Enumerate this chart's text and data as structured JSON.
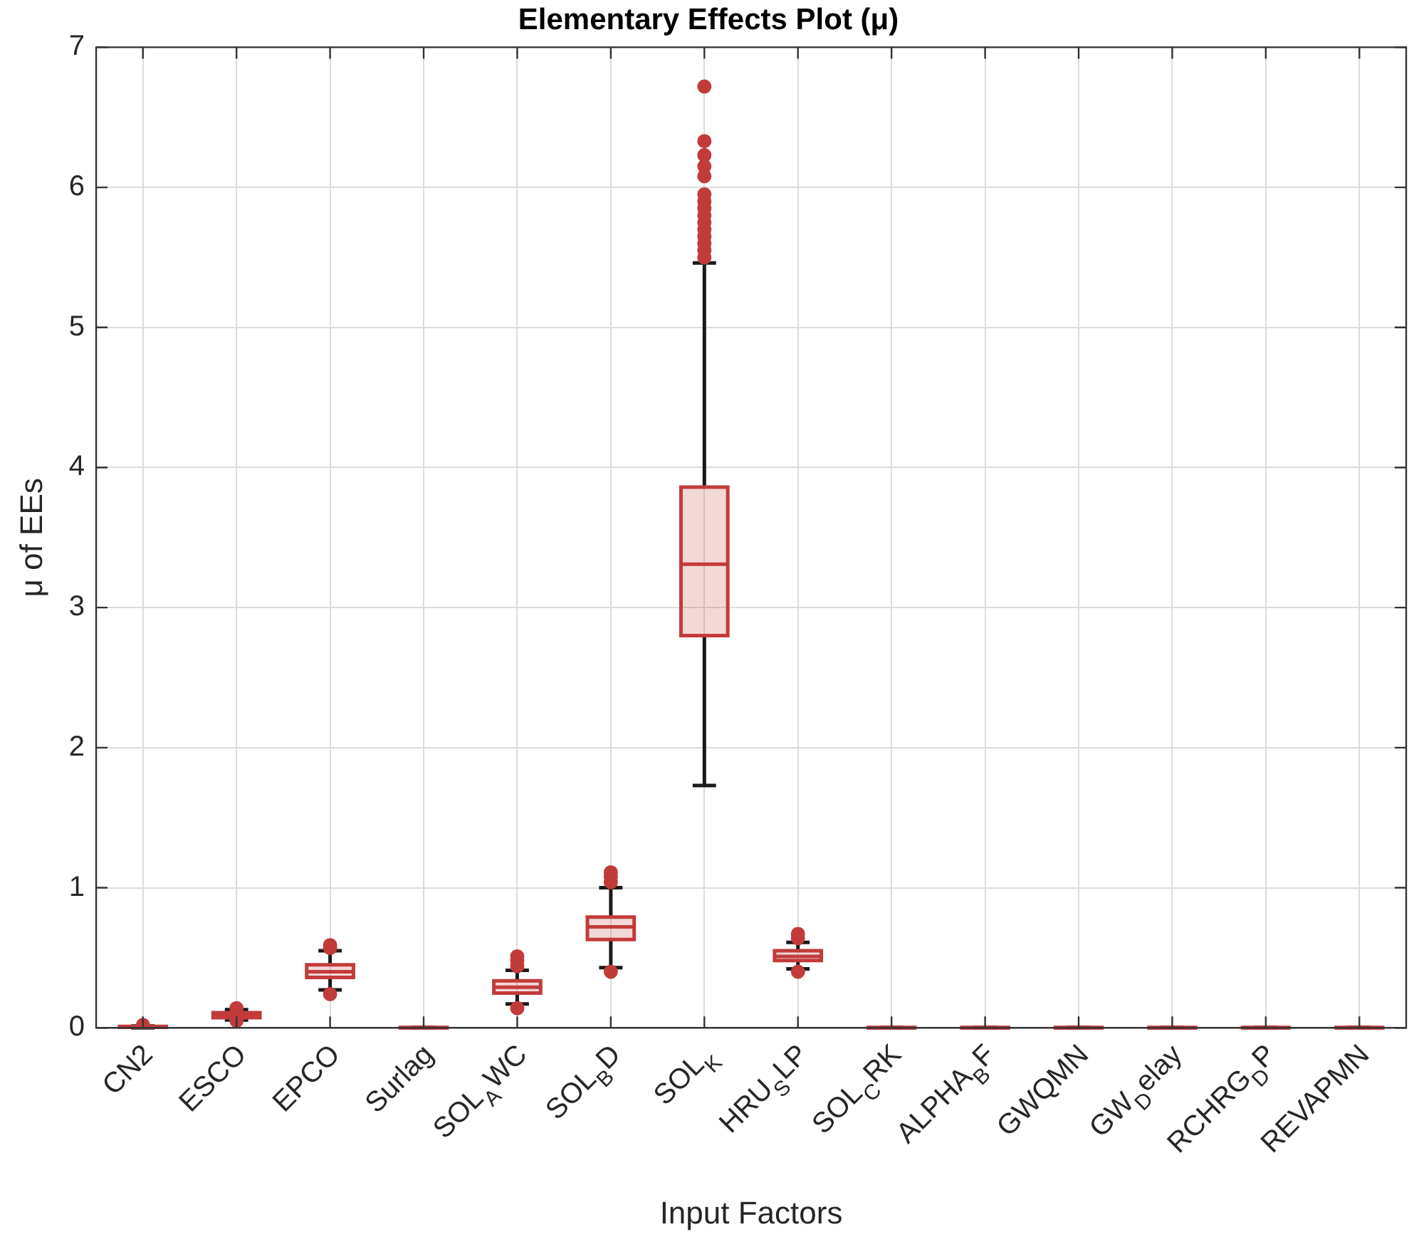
{
  "chart_data": {
    "type": "box",
    "title": "Elementary Effects Plot (μ)",
    "xlabel": "Input Factors",
    "ylabel": "μ of EEs",
    "categories": [
      "CN2",
      "ESCO",
      "EPCO",
      "Surlag",
      "SOL$_{A}$WC",
      "SOL$_{B}$D",
      "SOL$_{K}$",
      "HRU$_{S}$LP",
      "SOL$_{C}$RK",
      "ALPHA$_{B}$F",
      "GWQMN",
      "GW$_{D}$elay",
      "RCHRG$_{D}$P",
      "REVAPMN"
    ],
    "color": "#c23b3b",
    "boxes": [
      {
        "low": 0,
        "q1": 0.004,
        "median": 0.007,
        "q3": 0.01,
        "high": 0.013,
        "outliers": [
          0.02
        ]
      },
      {
        "low": 0.056,
        "q1": 0.072,
        "median": 0.09,
        "q3": 0.108,
        "high": 0.13,
        "outliers": [
          0.14,
          0.05
        ]
      },
      {
        "low": 0.27,
        "q1": 0.36,
        "median": 0.4,
        "q3": 0.45,
        "high": 0.55,
        "outliers": [
          0.59,
          0.57,
          0.24
        ]
      },
      {
        "low": 0,
        "q1": 0,
        "median": 0,
        "q3": 0.002,
        "high": 0.003
      },
      {
        "low": 0.17,
        "q1": 0.247,
        "median": 0.29,
        "q3": 0.335,
        "high": 0.41,
        "outliers": [
          0.51,
          0.48,
          0.44,
          0.14
        ]
      },
      {
        "low": 0.43,
        "q1": 0.63,
        "median": 0.72,
        "q3": 0.79,
        "high": 1.0,
        "outliers": [
          1.11,
          1.08,
          1.04,
          0.4
        ]
      },
      {
        "low": 1.73,
        "q1": 2.8,
        "median": 3.31,
        "q3": 3.86,
        "high": 5.46,
        "outliers": [
          6.72,
          6.33,
          6.23,
          6.15,
          6.08,
          5.95,
          5.9,
          5.85,
          5.8,
          5.75,
          5.7,
          5.65,
          5.6,
          5.55,
          5.5
        ]
      },
      {
        "low": 0.42,
        "q1": 0.48,
        "median": 0.51,
        "q3": 0.55,
        "high": 0.61,
        "outliers": [
          0.67,
          0.64,
          0.4
        ]
      },
      {
        "low": 0,
        "q1": 0,
        "median": 0,
        "q3": 0.002,
        "high": 0.003
      },
      {
        "low": 0,
        "q1": 0,
        "median": 0,
        "q3": 0.002,
        "high": 0.003
      },
      {
        "low": 0,
        "q1": 0,
        "median": 0,
        "q3": 0.002,
        "high": 0.003
      },
      {
        "low": 0,
        "q1": 0,
        "median": 0,
        "q3": 0.002,
        "high": 0.003
      },
      {
        "low": 0,
        "q1": 0,
        "median": 0,
        "q3": 0.002,
        "high": 0.003
      },
      {
        "low": 0,
        "q1": 0,
        "median": 0,
        "q3": 0.002,
        "high": 0.003
      }
    ],
    "ylim": [
      0,
      7
    ],
    "yticks": [
      0,
      1,
      2,
      3,
      4,
      5,
      6,
      7
    ],
    "grid": true,
    "legend": false,
    "marker": "circle"
  }
}
